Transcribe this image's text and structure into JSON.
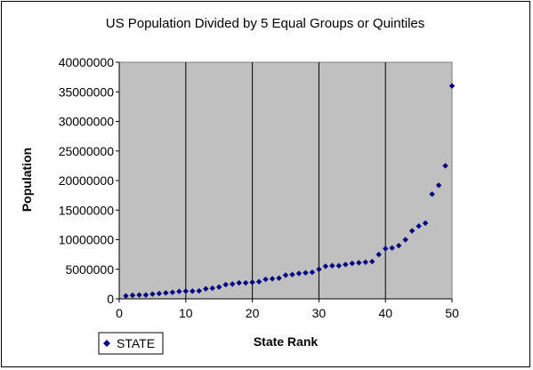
{
  "chart_data": {
    "type": "scatter",
    "title": "US Population Divided by 5 Equal Groups or Quintiles",
    "xlabel": "State Rank",
    "ylabel": "Population",
    "xlim": [
      0,
      50
    ],
    "ylim": [
      0,
      40000000
    ],
    "x_ticks": [
      "0",
      "10",
      "20",
      "30",
      "40",
      "50"
    ],
    "y_ticks": [
      "0",
      "5000000",
      "10000000",
      "15000000",
      "20000000",
      "25000000",
      "30000000",
      "35000000",
      "40000000"
    ],
    "vertical_gridlines_at": [
      10,
      20,
      30,
      40
    ],
    "plot_background": "#c0c0c0",
    "marker_color": "#000080",
    "marker": "diamond",
    "legend_position": "bottom-left",
    "series": [
      {
        "name": "STATE",
        "x": [
          1,
          2,
          3,
          4,
          5,
          6,
          7,
          8,
          9,
          10,
          11,
          12,
          13,
          14,
          15,
          16,
          17,
          18,
          19,
          20,
          21,
          22,
          23,
          24,
          25,
          26,
          27,
          28,
          29,
          30,
          31,
          32,
          33,
          34,
          35,
          36,
          37,
          38,
          39,
          40,
          41,
          42,
          43,
          44,
          45,
          46,
          47,
          48,
          49,
          50
        ],
        "y": [
          500000,
          600000,
          650000,
          650000,
          800000,
          900000,
          1000000,
          1100000,
          1250000,
          1300000,
          1300000,
          1350000,
          1700000,
          1800000,
          2000000,
          2400000,
          2500000,
          2700000,
          2700000,
          2800000,
          2900000,
          3300000,
          3400000,
          3500000,
          4000000,
          4100000,
          4300000,
          4400000,
          4500000,
          5000000,
          5500000,
          5600000,
          5600000,
          5800000,
          6000000,
          6100000,
          6200000,
          6300000,
          7500000,
          8500000,
          8600000,
          9000000,
          10000000,
          11500000,
          12300000,
          12800000,
          17700000,
          19200000,
          22500000,
          36000000
        ]
      }
    ]
  },
  "legend": {
    "label": "STATE"
  }
}
